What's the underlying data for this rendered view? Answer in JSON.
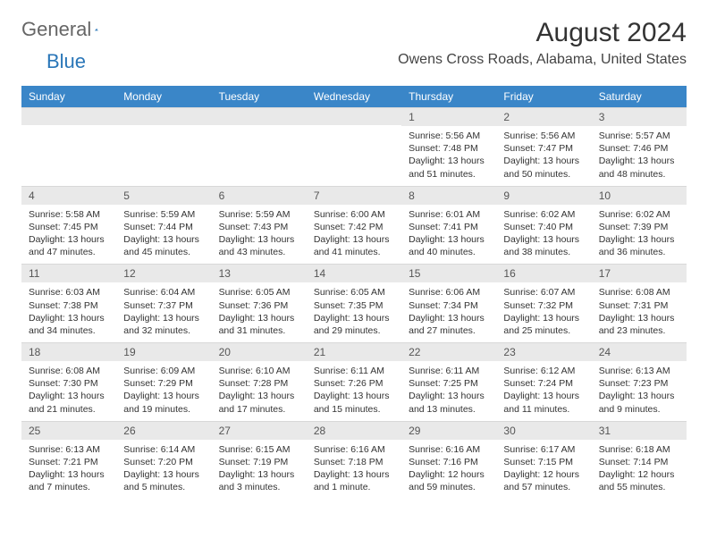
{
  "logo": {
    "part1": "General",
    "part2": "Blue"
  },
  "title": "August 2024",
  "location": "Owens Cross Roads, Alabama, United States",
  "colors": {
    "header_bg": "#3a86c8",
    "header_fg": "#ffffff",
    "daynum_bg": "#e9e9e9",
    "text": "#333333",
    "logo_blue": "#2976b8"
  },
  "weekdays": [
    "Sunday",
    "Monday",
    "Tuesday",
    "Wednesday",
    "Thursday",
    "Friday",
    "Saturday"
  ],
  "weeks": [
    [
      {
        "day": "",
        "lines": []
      },
      {
        "day": "",
        "lines": []
      },
      {
        "day": "",
        "lines": []
      },
      {
        "day": "",
        "lines": []
      },
      {
        "day": "1",
        "lines": [
          "Sunrise: 5:56 AM",
          "Sunset: 7:48 PM",
          "Daylight: 13 hours and 51 minutes."
        ]
      },
      {
        "day": "2",
        "lines": [
          "Sunrise: 5:56 AM",
          "Sunset: 7:47 PM",
          "Daylight: 13 hours and 50 minutes."
        ]
      },
      {
        "day": "3",
        "lines": [
          "Sunrise: 5:57 AM",
          "Sunset: 7:46 PM",
          "Daylight: 13 hours and 48 minutes."
        ]
      }
    ],
    [
      {
        "day": "4",
        "lines": [
          "Sunrise: 5:58 AM",
          "Sunset: 7:45 PM",
          "Daylight: 13 hours and 47 minutes."
        ]
      },
      {
        "day": "5",
        "lines": [
          "Sunrise: 5:59 AM",
          "Sunset: 7:44 PM",
          "Daylight: 13 hours and 45 minutes."
        ]
      },
      {
        "day": "6",
        "lines": [
          "Sunrise: 5:59 AM",
          "Sunset: 7:43 PM",
          "Daylight: 13 hours and 43 minutes."
        ]
      },
      {
        "day": "7",
        "lines": [
          "Sunrise: 6:00 AM",
          "Sunset: 7:42 PM",
          "Daylight: 13 hours and 41 minutes."
        ]
      },
      {
        "day": "8",
        "lines": [
          "Sunrise: 6:01 AM",
          "Sunset: 7:41 PM",
          "Daylight: 13 hours and 40 minutes."
        ]
      },
      {
        "day": "9",
        "lines": [
          "Sunrise: 6:02 AM",
          "Sunset: 7:40 PM",
          "Daylight: 13 hours and 38 minutes."
        ]
      },
      {
        "day": "10",
        "lines": [
          "Sunrise: 6:02 AM",
          "Sunset: 7:39 PM",
          "Daylight: 13 hours and 36 minutes."
        ]
      }
    ],
    [
      {
        "day": "11",
        "lines": [
          "Sunrise: 6:03 AM",
          "Sunset: 7:38 PM",
          "Daylight: 13 hours and 34 minutes."
        ]
      },
      {
        "day": "12",
        "lines": [
          "Sunrise: 6:04 AM",
          "Sunset: 7:37 PM",
          "Daylight: 13 hours and 32 minutes."
        ]
      },
      {
        "day": "13",
        "lines": [
          "Sunrise: 6:05 AM",
          "Sunset: 7:36 PM",
          "Daylight: 13 hours and 31 minutes."
        ]
      },
      {
        "day": "14",
        "lines": [
          "Sunrise: 6:05 AM",
          "Sunset: 7:35 PM",
          "Daylight: 13 hours and 29 minutes."
        ]
      },
      {
        "day": "15",
        "lines": [
          "Sunrise: 6:06 AM",
          "Sunset: 7:34 PM",
          "Daylight: 13 hours and 27 minutes."
        ]
      },
      {
        "day": "16",
        "lines": [
          "Sunrise: 6:07 AM",
          "Sunset: 7:32 PM",
          "Daylight: 13 hours and 25 minutes."
        ]
      },
      {
        "day": "17",
        "lines": [
          "Sunrise: 6:08 AM",
          "Sunset: 7:31 PM",
          "Daylight: 13 hours and 23 minutes."
        ]
      }
    ],
    [
      {
        "day": "18",
        "lines": [
          "Sunrise: 6:08 AM",
          "Sunset: 7:30 PM",
          "Daylight: 13 hours and 21 minutes."
        ]
      },
      {
        "day": "19",
        "lines": [
          "Sunrise: 6:09 AM",
          "Sunset: 7:29 PM",
          "Daylight: 13 hours and 19 minutes."
        ]
      },
      {
        "day": "20",
        "lines": [
          "Sunrise: 6:10 AM",
          "Sunset: 7:28 PM",
          "Daylight: 13 hours and 17 minutes."
        ]
      },
      {
        "day": "21",
        "lines": [
          "Sunrise: 6:11 AM",
          "Sunset: 7:26 PM",
          "Daylight: 13 hours and 15 minutes."
        ]
      },
      {
        "day": "22",
        "lines": [
          "Sunrise: 6:11 AM",
          "Sunset: 7:25 PM",
          "Daylight: 13 hours and 13 minutes."
        ]
      },
      {
        "day": "23",
        "lines": [
          "Sunrise: 6:12 AM",
          "Sunset: 7:24 PM",
          "Daylight: 13 hours and 11 minutes."
        ]
      },
      {
        "day": "24",
        "lines": [
          "Sunrise: 6:13 AM",
          "Sunset: 7:23 PM",
          "Daylight: 13 hours and 9 minutes."
        ]
      }
    ],
    [
      {
        "day": "25",
        "lines": [
          "Sunrise: 6:13 AM",
          "Sunset: 7:21 PM",
          "Daylight: 13 hours and 7 minutes."
        ]
      },
      {
        "day": "26",
        "lines": [
          "Sunrise: 6:14 AM",
          "Sunset: 7:20 PM",
          "Daylight: 13 hours and 5 minutes."
        ]
      },
      {
        "day": "27",
        "lines": [
          "Sunrise: 6:15 AM",
          "Sunset: 7:19 PM",
          "Daylight: 13 hours and 3 minutes."
        ]
      },
      {
        "day": "28",
        "lines": [
          "Sunrise: 6:16 AM",
          "Sunset: 7:18 PM",
          "Daylight: 13 hours and 1 minute."
        ]
      },
      {
        "day": "29",
        "lines": [
          "Sunrise: 6:16 AM",
          "Sunset: 7:16 PM",
          "Daylight: 12 hours and 59 minutes."
        ]
      },
      {
        "day": "30",
        "lines": [
          "Sunrise: 6:17 AM",
          "Sunset: 7:15 PM",
          "Daylight: 12 hours and 57 minutes."
        ]
      },
      {
        "day": "31",
        "lines": [
          "Sunrise: 6:18 AM",
          "Sunset: 7:14 PM",
          "Daylight: 12 hours and 55 minutes."
        ]
      }
    ]
  ]
}
